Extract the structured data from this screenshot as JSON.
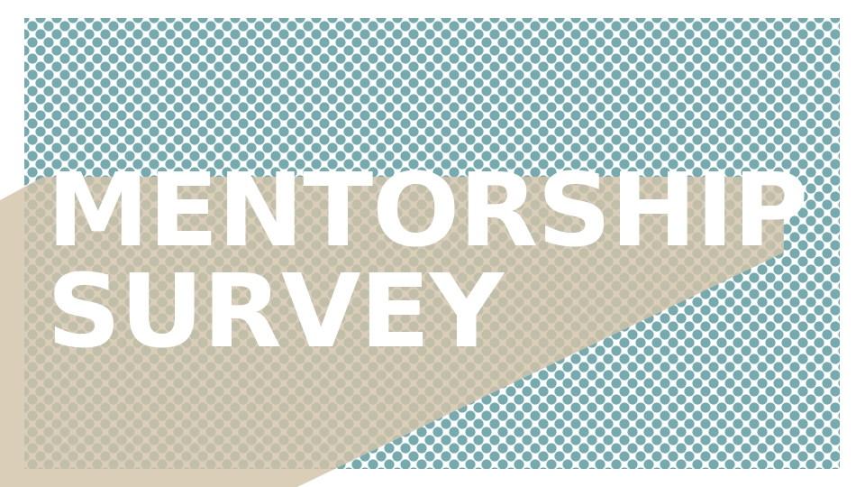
{
  "slide": {
    "title_line1": "MENTORSHIP",
    "title_line2": "SURVEY"
  },
  "colors": {
    "dots": "#75aaaf",
    "tan_overlay": "#d2c3a8",
    "title": "#ffffff",
    "background": "#ffffff"
  }
}
